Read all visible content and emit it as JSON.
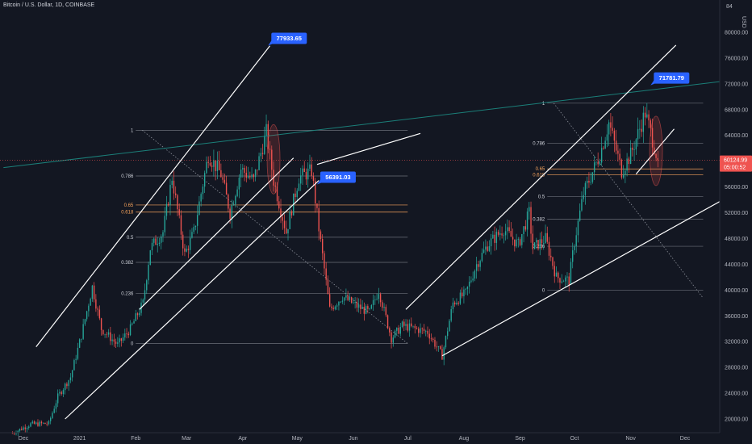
{
  "header": {
    "symbol_title": "Bitcoin / U.S. Dollar, 1D, COINBASE",
    "currency": "USD"
  },
  "colors": {
    "background": "#131722",
    "up": "#26a69a",
    "down": "#ef5350",
    "callout": "#2962ff",
    "trendline": "#ffffff",
    "resistance": "#1b7f79",
    "fib_default": "#d1d4dc",
    "fib_golden": "#f7a35c",
    "current_price_line": "#ef5350"
  },
  "chart_data": {
    "type": "candlestick",
    "title": "Bitcoin / U.S. Dollar, 1D, COINBASE",
    "ylabel": "USD",
    "y_ticks": [
      20000,
      24000,
      28000,
      32000,
      36000,
      40000,
      44000,
      48000,
      52000,
      56000,
      60000,
      64000,
      68000,
      72000,
      76000,
      80000
    ],
    "y_tick_labels": [
      "20000.00",
      "24000.00",
      "28000.00",
      "32000.00",
      "36000.00",
      "40000.00",
      "44000.00",
      "48000.00",
      "52000.00",
      "56000.00",
      "60000.00",
      "64000.00",
      "68000.00",
      "72000.00",
      "76000.00",
      "80000.00"
    ],
    "top_tick_label": "84",
    "x_ticks": [
      "Dec",
      "2021",
      "Feb",
      "Mar",
      "Apr",
      "May",
      "Jun",
      "Jul",
      "Aug",
      "Sep",
      "Oct",
      "Nov",
      "Dec"
    ],
    "x_tick_dates": [
      "2020-12-01",
      "2021-01-01",
      "2021-02-01",
      "2021-03-01",
      "2021-04-01",
      "2021-05-01",
      "2021-06-01",
      "2021-07-01",
      "2021-08-01",
      "2021-09-01",
      "2021-10-01",
      "2021-11-01",
      "2021-12-01"
    ],
    "approx_path": [
      [
        "2020-11-25",
        17800
      ],
      [
        "2020-12-05",
        19200
      ],
      [
        "2020-12-15",
        19300
      ],
      [
        "2020-12-20",
        23500
      ],
      [
        "2020-12-27",
        26500
      ],
      [
        "2021-01-02",
        33000
      ],
      [
        "2021-01-08",
        40500
      ],
      [
        "2021-01-13",
        34000
      ],
      [
        "2021-01-22",
        31500
      ],
      [
        "2021-01-29",
        34000
      ],
      [
        "2021-02-05",
        38000
      ],
      [
        "2021-02-09",
        46500
      ],
      [
        "2021-02-16",
        49000
      ],
      [
        "2021-02-21",
        57500
      ],
      [
        "2021-02-28",
        45500
      ],
      [
        "2021-03-05",
        49000
      ],
      [
        "2021-03-13",
        61000
      ],
      [
        "2021-03-20",
        58000
      ],
      [
        "2021-03-25",
        52000
      ],
      [
        "2021-03-31",
        58800
      ],
      [
        "2021-04-07",
        57000
      ],
      [
        "2021-04-14",
        64500
      ],
      [
        "2021-04-18",
        57000
      ],
      [
        "2021-04-25",
        49000
      ],
      [
        "2021-05-02",
        57500
      ],
      [
        "2021-05-09",
        58500
      ],
      [
        "2021-05-13",
        49500
      ],
      [
        "2021-05-19",
        37000
      ],
      [
        "2021-05-26",
        39000
      ],
      [
        "2021-06-03",
        37500
      ],
      [
        "2021-06-10",
        36500
      ],
      [
        "2021-06-15",
        40000
      ],
      [
        "2021-06-22",
        32500
      ],
      [
        "2021-06-28",
        34500
      ],
      [
        "2021-07-05",
        34000
      ],
      [
        "2021-07-12",
        33500
      ],
      [
        "2021-07-20",
        29800
      ],
      [
        "2021-07-26",
        38000
      ],
      [
        "2021-08-02",
        39500
      ],
      [
        "2021-08-08",
        44000
      ],
      [
        "2021-08-14",
        47000
      ],
      [
        "2021-08-23",
        49500
      ],
      [
        "2021-08-31",
        47000
      ],
      [
        "2021-09-06",
        52000
      ],
      [
        "2021-09-08",
        46500
      ],
      [
        "2021-09-15",
        48000
      ],
      [
        "2021-09-21",
        42000
      ],
      [
        "2021-09-28",
        41500
      ],
      [
        "2021-10-01",
        47500
      ],
      [
        "2021-10-06",
        55000
      ],
      [
        "2021-10-15",
        61000
      ],
      [
        "2021-10-20",
        66000
      ],
      [
        "2021-10-27",
        58500
      ],
      [
        "2021-11-01",
        61000
      ],
      [
        "2021-11-09",
        67500
      ],
      [
        "2021-11-12",
        64500
      ],
      [
        "2021-11-16",
        60100
      ]
    ],
    "last_price": 60124.99,
    "last_price_label": "60124.99",
    "countdown": "05:00:52",
    "callouts": [
      {
        "label": "77933.65",
        "date": "2021-04-15",
        "price": 77933.65
      },
      {
        "label": "56391.03",
        "date": "2021-05-12",
        "price": 56391.03
      },
      {
        "label": "71781.79",
        "date": "2021-11-12",
        "price": 71781.79
      }
    ],
    "fib_retracements": [
      {
        "x_start": "2021-02-01",
        "x_end": "2021-07-01",
        "levels": [
          {
            "label": "1",
            "price": 64800
          },
          {
            "label": "0.786",
            "price": 57700
          },
          {
            "label": "0.65",
            "price": 53200,
            "golden": true
          },
          {
            "label": "0.618",
            "price": 52100,
            "golden": true
          },
          {
            "label": "0.5",
            "price": 48200
          },
          {
            "label": "0.382",
            "price": 44300
          },
          {
            "label": "0.236",
            "price": 39500
          },
          {
            "label": "0",
            "price": 31700
          }
        ]
      },
      {
        "x_start": "2021-09-16",
        "x_end": "2021-12-11",
        "levels": [
          {
            "label": "1",
            "price": 69000
          },
          {
            "label": "0.786",
            "price": 62800
          },
          {
            "label": "0.65",
            "price": 58800,
            "golden": true
          },
          {
            "label": "0.618",
            "price": 57900,
            "golden": true
          },
          {
            "label": "0.5",
            "price": 54500
          },
          {
            "label": "0.382",
            "price": 51000
          },
          {
            "label": "0.236",
            "price": 46800
          },
          {
            "label": "0",
            "price": 40000
          }
        ]
      }
    ],
    "trendlines": [
      {
        "name": "channel-1-top",
        "from": [
          "2020-12-08",
          31200
        ],
        "to": [
          "2021-04-16",
          77900
        ]
      },
      {
        "name": "channel-1-bottom",
        "from": [
          "2020-12-24",
          20000
        ],
        "to": [
          "2021-05-13",
          57000
        ]
      },
      {
        "name": "channel-1-mid",
        "from": [
          "2021-02-03",
          37000
        ],
        "to": [
          "2021-04-29",
          60500
        ]
      },
      {
        "name": "channel-1-upper-mid",
        "from": [
          "2021-05-12",
          59500
        ],
        "to": [
          "2021-07-08",
          64300
        ]
      },
      {
        "name": "channel-2-top",
        "from": [
          "2021-06-30",
          37000
        ],
        "to": [
          "2021-11-26",
          78000
        ]
      },
      {
        "name": "channel-2-bottom",
        "from": [
          "2021-07-20",
          29800
        ],
        "to": [
          "2021-12-25",
          54500
        ]
      },
      {
        "name": "channel-2-mid",
        "from": [
          "2021-11-04",
          58000
        ],
        "to": [
          "2021-11-25",
          65000
        ]
      },
      {
        "name": "resistance",
        "from": [
          "2020-11-20",
          59000
        ],
        "to": [
          "2021-12-25",
          72500
        ]
      }
    ]
  }
}
